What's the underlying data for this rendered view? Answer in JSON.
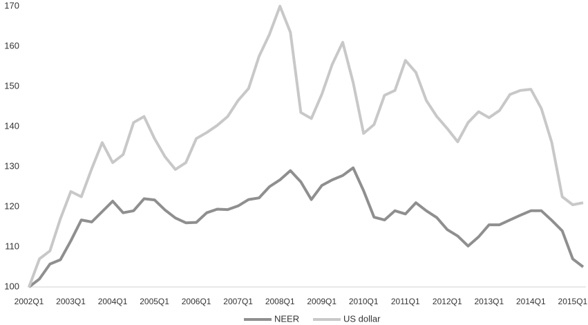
{
  "chart_data": {
    "type": "line",
    "categories": [
      "2002Q1",
      null,
      null,
      null,
      "2003Q1",
      null,
      null,
      null,
      "2004Q1",
      null,
      null,
      null,
      "2005Q1",
      null,
      null,
      null,
      "2006Q1",
      null,
      null,
      null,
      "2007Q1",
      null,
      null,
      null,
      "2008Q1",
      null,
      null,
      null,
      "2009Q1",
      null,
      null,
      null,
      "2010Q1",
      null,
      null,
      null,
      "2011Q1",
      null,
      null,
      null,
      "2012Q1",
      null,
      null,
      null,
      "2013Q1",
      null,
      null,
      null,
      "2014Q1",
      null,
      null,
      null,
      "2015Q1",
      null
    ],
    "series": [
      {
        "name": "NEER",
        "color": "#8f8f8f",
        "values": [
          100,
          102,
          105.7,
          106.8,
          111.5,
          116.7,
          116.2,
          118.8,
          121.4,
          118.5,
          119,
          122,
          121.7,
          119.2,
          117.2,
          116,
          116.1,
          118.5,
          119.4,
          119.3,
          120.2,
          121.8,
          122.2,
          125,
          126.7,
          129,
          126.2,
          121.8,
          125.3,
          126.7,
          127.8,
          129.7,
          124,
          117.4,
          116.7,
          119,
          118.2,
          121,
          119,
          117.3,
          114.3,
          112.7,
          110.2,
          112.5,
          115.5,
          115.5,
          116.7,
          117.9,
          119,
          119,
          116.6,
          114,
          107,
          105
        ]
      },
      {
        "name": "US dollar",
        "color": "#c8c8c8",
        "values": [
          100,
          107,
          109,
          117,
          123.8,
          122.5,
          129.5,
          136,
          131,
          133,
          141,
          142.5,
          137,
          132.5,
          129.3,
          131,
          137,
          138.5,
          140.3,
          142.5,
          146.5,
          149.5,
          157.5,
          163,
          170,
          163.5,
          143.5,
          142,
          148,
          155.5,
          161,
          151,
          138.3,
          140.5,
          147.8,
          149,
          156.5,
          153.5,
          146.5,
          142.5,
          139.5,
          136.2,
          141,
          143.7,
          142.2,
          144,
          148,
          149,
          149.3,
          144.5,
          136,
          122.5,
          120.5,
          121
        ]
      }
    ],
    "ylim": [
      100,
      170
    ],
    "yticks": [
      100,
      110,
      120,
      130,
      140,
      150,
      160,
      170
    ],
    "grid": false,
    "legend": "bottom"
  }
}
